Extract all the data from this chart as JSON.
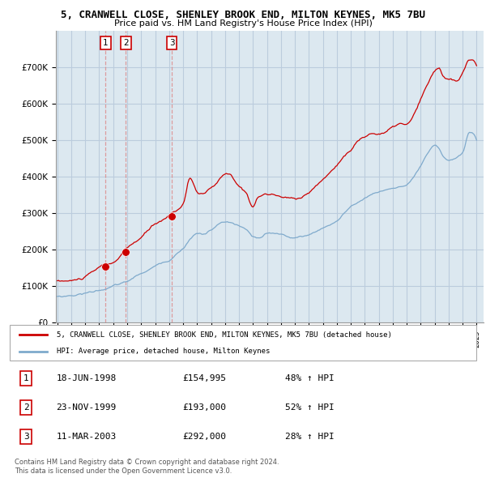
{
  "title1": "5, CRANWELL CLOSE, SHENLEY BROOK END, MILTON KEYNES, MK5 7BU",
  "title2": "Price paid vs. HM Land Registry's House Price Index (HPI)",
  "legend_red": "5, CRANWELL CLOSE, SHENLEY BROOK END, MILTON KEYNES, MK5 7BU (detached house)",
  "legend_blue": "HPI: Average price, detached house, Milton Keynes",
  "footer1": "Contains HM Land Registry data © Crown copyright and database right 2024.",
  "footer2": "This data is licensed under the Open Government Licence v3.0.",
  "ylim": [
    0,
    800000
  ],
  "yticks": [
    0,
    100000,
    200000,
    300000,
    400000,
    500000,
    600000,
    700000
  ],
  "red_color": "#cc0000",
  "blue_color": "#7faacc",
  "sale_marker_color": "#cc0000",
  "vline_color": "#dd8888",
  "grid_color": "#bbccdd",
  "chart_bg": "#dce8f0",
  "sale_years": [
    1998.46,
    1999.9,
    2003.19
  ],
  "sale_prices": [
    154995,
    193000,
    292000
  ],
  "row_dates": [
    "18-JUN-1998",
    "23-NOV-1999",
    "11-MAR-2003"
  ],
  "row_prices": [
    "£154,995",
    "£193,000",
    "£292,000"
  ],
  "row_pcts": [
    "48% ↑ HPI",
    "52% ↑ HPI",
    "28% ↑ HPI"
  ]
}
